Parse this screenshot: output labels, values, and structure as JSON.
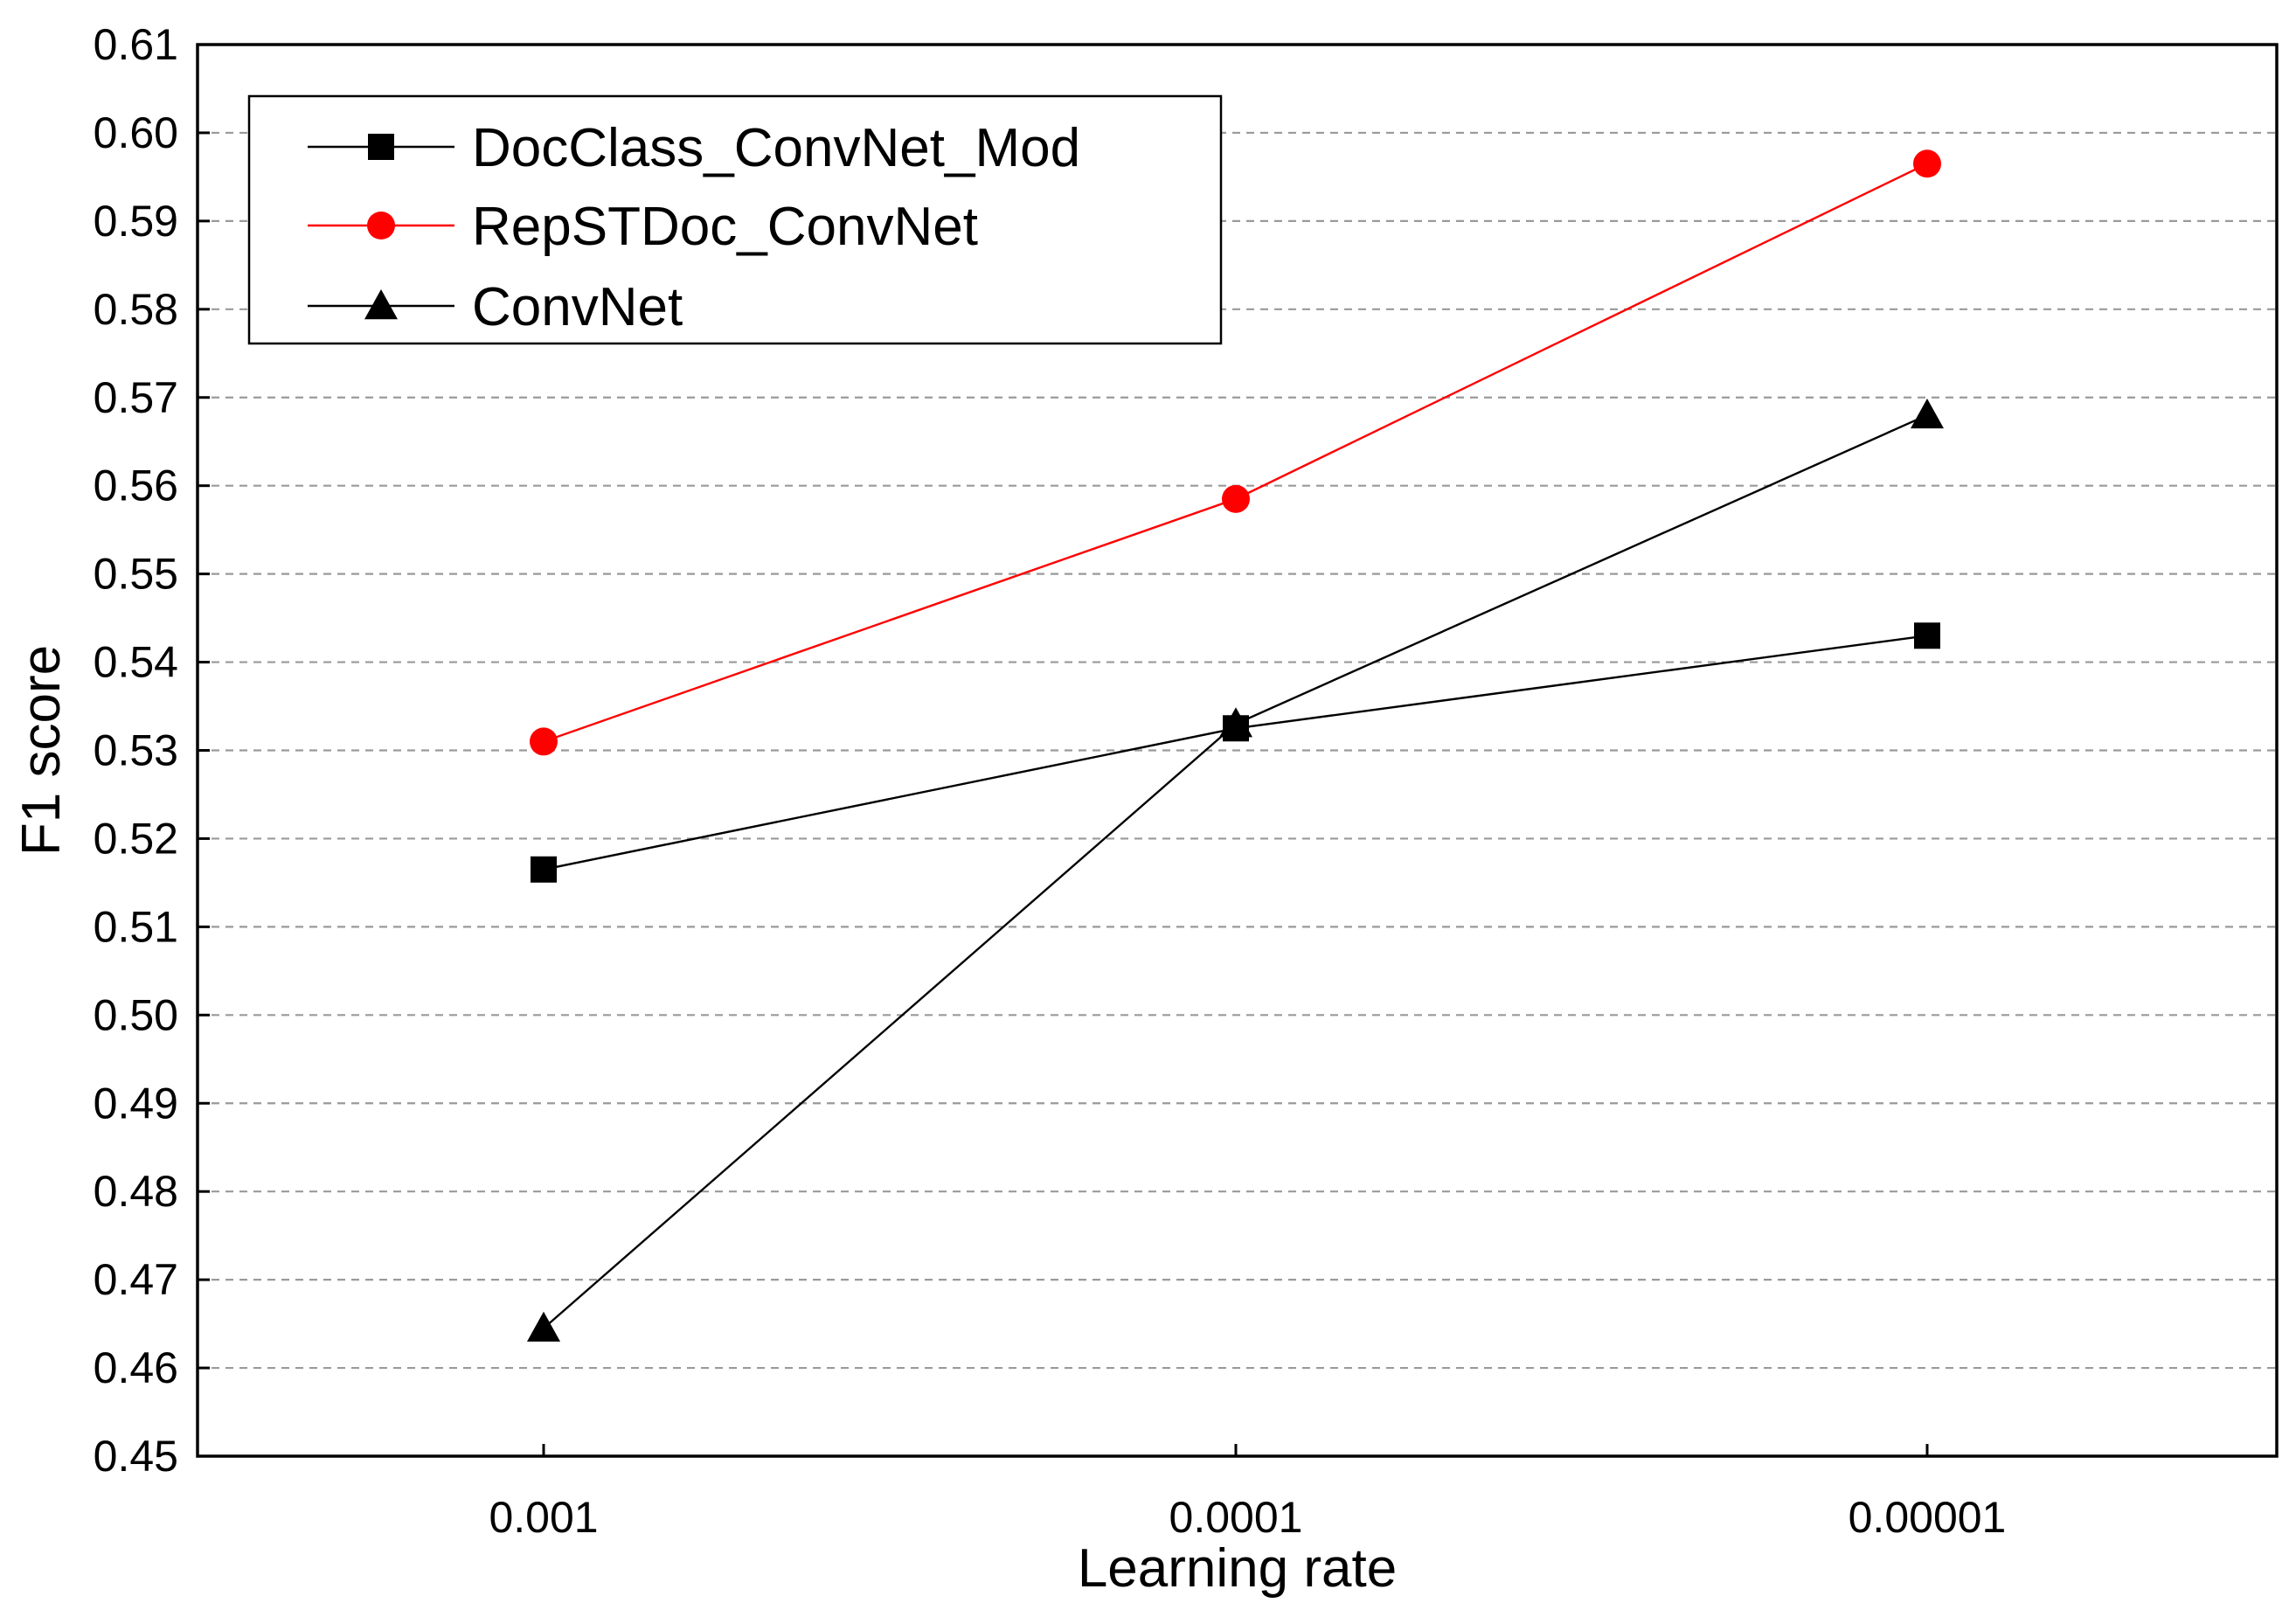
{
  "chart_data": {
    "type": "line",
    "title": "",
    "xlabel": "Learning rate",
    "ylabel": "F1 score",
    "categories": [
      "0.001",
      "0.0001",
      "0.00001"
    ],
    "ylim": [
      0.45,
      0.61
    ],
    "yticks": [
      "0.45",
      "0.46",
      "0.47",
      "0.48",
      "0.49",
      "0.50",
      "0.51",
      "0.52",
      "0.53",
      "0.54",
      "0.55",
      "0.56",
      "0.57",
      "0.58",
      "0.59",
      "0.60",
      "0.61"
    ],
    "grid": "horizontal dashed",
    "legend_position": "top-left",
    "series": [
      {
        "name": "DocClass_ConvNet_Mod",
        "color": "#000000",
        "marker": "square",
        "values": [
          0.5165,
          0.5325,
          0.543
        ]
      },
      {
        "name": "RepSTDoc_ConvNet",
        "color": "#ff0000",
        "marker": "circle",
        "values": [
          0.531,
          0.5585,
          0.5965
        ]
      },
      {
        "name": "ConvNet",
        "color": "#000000",
        "marker": "triangle",
        "values": [
          0.4645,
          0.533,
          0.568
        ]
      }
    ]
  }
}
